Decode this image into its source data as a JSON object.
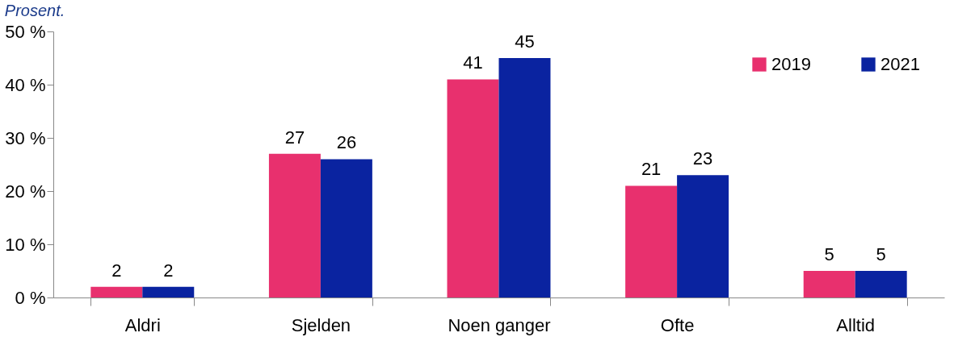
{
  "chart_data": {
    "type": "bar",
    "ylabel": "Prosent.",
    "categories": [
      "Aldri",
      "Sjelden",
      "Noen ganger",
      "Ofte",
      "Alltid"
    ],
    "series": [
      {
        "name": "2019",
        "color": "#e8306e",
        "values": [
          2,
          27,
          41,
          21,
          5
        ]
      },
      {
        "name": "2021",
        "color": "#0a23a0",
        "values": [
          2,
          26,
          45,
          23,
          5
        ]
      }
    ],
    "ylim": [
      0,
      50
    ],
    "yticks": [
      {
        "value": 0,
        "label": "0 %"
      },
      {
        "value": 10,
        "label": "10 %"
      },
      {
        "value": 20,
        "label": "20 %"
      },
      {
        "value": 30,
        "label": "30 %"
      },
      {
        "value": 40,
        "label": "40 %"
      },
      {
        "value": 50,
        "label": "50 %"
      }
    ],
    "data_labels": true,
    "grid": false,
    "legend": "top right"
  }
}
